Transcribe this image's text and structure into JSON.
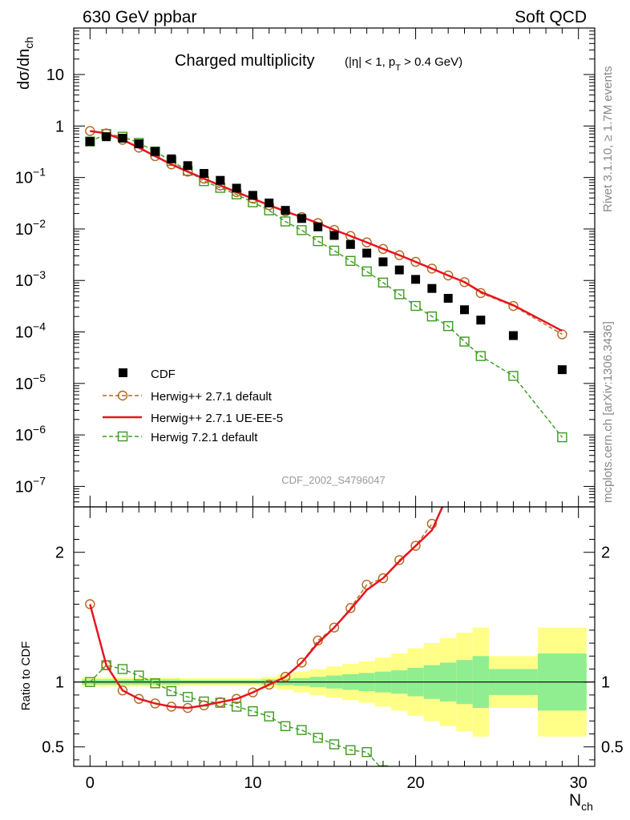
{
  "header": {
    "left": "630 GeV ppbar",
    "right": "Soft QCD"
  },
  "side_labels": {
    "top": "Rivet 3.1.10, ≥ 1.7M events",
    "bottom": "mcplots.cern.ch [arXiv:1306.3436]"
  },
  "watermark": "CDF_2002_S4796047",
  "colors": {
    "data": "#000000",
    "herwig_default": "#b5651d",
    "herwig_ueee5": "#e8141e",
    "herwig7": "#3c9a1e",
    "band_inner": "#90ee90",
    "band_outer": "#ffff88"
  },
  "chart_data": [
    {
      "type": "scatter",
      "title_main": "Charged multiplicity",
      "title_cuts": [
        "(|η| < 1, p",
        "T",
        " > 0.4 GeV)"
      ],
      "ylabel_main": "dσ/dn",
      "ylabel_sub": "ch",
      "yscale": "log",
      "xlim": [
        -1,
        31
      ],
      "ylim": [
        4e-08,
        80
      ],
      "x_ticks": [
        0,
        10,
        20,
        30
      ],
      "y_ticks": [
        {
          "value": 10,
          "label": "10",
          "exp": ""
        },
        {
          "value": 1,
          "label": "1",
          "exp": ""
        },
        {
          "value": 0.1,
          "label": "10",
          "exp": "−1"
        },
        {
          "value": 0.01,
          "label": "10",
          "exp": "−2"
        },
        {
          "value": 0.001,
          "label": "10",
          "exp": "−3"
        },
        {
          "value": 0.0001,
          "label": "10",
          "exp": "−4"
        },
        {
          "value": 1e-05,
          "label": "10",
          "exp": "−5"
        },
        {
          "value": 1e-06,
          "label": "10",
          "exp": "−6"
        },
        {
          "value": 1e-07,
          "label": "10",
          "exp": "−7"
        }
      ],
      "legend_position": "lower-left",
      "series": [
        {
          "name": "CDF",
          "x": [
            0,
            1,
            2,
            3,
            4,
            5,
            6,
            7,
            8,
            9,
            10,
            11,
            12,
            13,
            14,
            15,
            16,
            17,
            18,
            19,
            20,
            21,
            22,
            23,
            24,
            26,
            29
          ],
          "y": [
            0.5,
            0.62,
            0.58,
            0.45,
            0.32,
            0.23,
            0.17,
            0.12,
            0.088,
            0.062,
            0.045,
            0.032,
            0.023,
            0.016,
            0.011,
            0.0075,
            0.005,
            0.0034,
            0.0023,
            0.0016,
            0.00105,
            0.0007,
            0.00045,
            0.00027,
            0.00017,
            8.5e-05,
            1.85e-05
          ]
        },
        {
          "name": "Herwig++ 2.7.1 default",
          "x": [
            0,
            1,
            2,
            3,
            4,
            5,
            6,
            7,
            8,
            9,
            10,
            11,
            12,
            13,
            14,
            15,
            16,
            17,
            18,
            19,
            20,
            21,
            22,
            23,
            24,
            26,
            29
          ],
          "y": [
            0.8,
            0.72,
            0.54,
            0.38,
            0.26,
            0.18,
            0.13,
            0.095,
            0.07,
            0.052,
            0.039,
            0.029,
            0.022,
            0.017,
            0.013,
            0.0096,
            0.0073,
            0.0055,
            0.0041,
            0.0031,
            0.0023,
            0.0017,
            0.00125,
            0.00093,
            0.00057,
            0.00032,
            9e-05
          ]
        },
        {
          "name": "Herwig++ 2.7.1 UE-EE-5",
          "x": [
            0,
            1,
            2,
            3,
            4,
            5,
            6,
            7,
            8,
            9,
            10,
            11,
            12,
            13,
            14,
            15,
            16,
            17,
            18,
            19,
            20,
            21,
            22,
            23,
            24,
            26,
            29
          ],
          "y": [
            0.8,
            0.72,
            0.54,
            0.38,
            0.26,
            0.18,
            0.13,
            0.095,
            0.07,
            0.052,
            0.039,
            0.029,
            0.022,
            0.017,
            0.013,
            0.0096,
            0.0073,
            0.0055,
            0.0041,
            0.0031,
            0.0023,
            0.0017,
            0.00125,
            0.00093,
            0.0006,
            0.00033,
            0.000105
          ]
        },
        {
          "name": "Herwig 7.2.1 default",
          "x": [
            0,
            1,
            2,
            3,
            4,
            5,
            6,
            7,
            8,
            9,
            10,
            11,
            12,
            13,
            14,
            15,
            16,
            17,
            18,
            19,
            20,
            21,
            22,
            23,
            24,
            26,
            29
          ],
          "y": [
            0.5,
            0.7,
            0.62,
            0.47,
            0.32,
            0.21,
            0.135,
            0.085,
            0.063,
            0.047,
            0.033,
            0.023,
            0.014,
            0.0095,
            0.0058,
            0.0038,
            0.0024,
            0.0015,
            0.00091,
            0.00054,
            0.00032,
            0.0002,
            0.00013,
            6.5e-05,
            3.4e-05,
            1.4e-05,
            9e-07
          ]
        }
      ]
    },
    {
      "type": "line",
      "ylabel": "Ratio to CDF",
      "xlabel_main": "N",
      "xlabel_sub": "ch",
      "xlim": [
        -1,
        31
      ],
      "ylim": [
        0.35,
        2.35
      ],
      "y_ticks": [
        0.5,
        1,
        2
      ],
      "band_bins": [
        {
          "x0": -0.5,
          "x1": 2.5,
          "outer": 0.035,
          "inner": 0.02
        },
        {
          "x0": 2.5,
          "x1": 5.5,
          "outer": 0.035,
          "inner": 0.02
        },
        {
          "x0": 5.5,
          "x1": 8.5,
          "outer": 0.03,
          "inner": 0.015
        },
        {
          "x0": 8.5,
          "x1": 10.5,
          "outer": 0.03,
          "inner": 0.015
        },
        {
          "x0": 10.5,
          "x1": 11.5,
          "outer": 0.04,
          "inner": 0.02
        },
        {
          "x0": 11.5,
          "x1": 12.5,
          "outer": 0.06,
          "inner": 0.025
        },
        {
          "x0": 12.5,
          "x1": 13.5,
          "outer": 0.08,
          "inner": 0.03
        },
        {
          "x0": 13.5,
          "x1": 14.5,
          "outer": 0.1,
          "inner": 0.04
        },
        {
          "x0": 14.5,
          "x1": 15.5,
          "outer": 0.12,
          "inner": 0.05
        },
        {
          "x0": 15.5,
          "x1": 16.5,
          "outer": 0.14,
          "inner": 0.06
        },
        {
          "x0": 16.5,
          "x1": 17.5,
          "outer": 0.16,
          "inner": 0.07
        },
        {
          "x0": 17.5,
          "x1": 18.5,
          "outer": 0.19,
          "inner": 0.08
        },
        {
          "x0": 18.5,
          "x1": 19.5,
          "outer": 0.22,
          "inner": 0.09
        },
        {
          "x0": 19.5,
          "x1": 20.5,
          "outer": 0.26,
          "inner": 0.11
        },
        {
          "x0": 20.5,
          "x1": 21.5,
          "outer": 0.3,
          "inner": 0.13
        },
        {
          "x0": 21.5,
          "x1": 22.5,
          "outer": 0.34,
          "inner": 0.15
        },
        {
          "x0": 22.5,
          "x1": 23.5,
          "outer": 0.38,
          "inner": 0.17
        },
        {
          "x0": 23.5,
          "x1": 24.5,
          "outer": 0.42,
          "inner": 0.2
        },
        {
          "x0": 24.5,
          "x1": 27.5,
          "outer": 0.2,
          "inner": 0.1
        },
        {
          "x0": 27.5,
          "x1": 30.5,
          "outer": 0.42,
          "inner": 0.22
        }
      ],
      "series": [
        {
          "name": "Herwig++ 2.7.1 default",
          "x": [
            0,
            1,
            2,
            3,
            4,
            5,
            6,
            7,
            8,
            9,
            10,
            11,
            12,
            13,
            14,
            15,
            16,
            17,
            18,
            19,
            20,
            21
          ],
          "y": [
            1.6,
            1.13,
            0.935,
            0.87,
            0.835,
            0.81,
            0.8,
            0.82,
            0.845,
            0.87,
            0.92,
            0.98,
            1.04,
            1.15,
            1.32,
            1.42,
            1.57,
            1.75,
            1.8,
            1.94,
            2.05,
            2.22
          ]
        },
        {
          "name": "Herwig++ 2.7.1 UE-EE-5",
          "x": [
            0,
            1,
            2,
            3,
            4,
            5,
            6,
            7,
            8,
            9,
            10,
            11,
            12,
            13,
            14,
            15,
            16,
            17,
            18,
            19,
            20,
            21,
            22
          ],
          "y": [
            1.6,
            1.13,
            0.935,
            0.87,
            0.835,
            0.81,
            0.8,
            0.82,
            0.845,
            0.87,
            0.92,
            0.98,
            1.04,
            1.15,
            1.3,
            1.42,
            1.56,
            1.71,
            1.8,
            1.93,
            2.05,
            2.17,
            2.45
          ]
        },
        {
          "name": "Herwig 7.2.1 default",
          "x": [
            0,
            1,
            2,
            3,
            4,
            5,
            6,
            7,
            8,
            9,
            10,
            11,
            12,
            13,
            14,
            15,
            16,
            17,
            18
          ],
          "y": [
            1.0,
            1.13,
            1.1,
            1.05,
            0.99,
            0.93,
            0.885,
            0.85,
            0.84,
            0.81,
            0.775,
            0.735,
            0.66,
            0.63,
            0.57,
            0.52,
            0.475,
            0.46,
            0.32
          ]
        }
      ]
    }
  ]
}
